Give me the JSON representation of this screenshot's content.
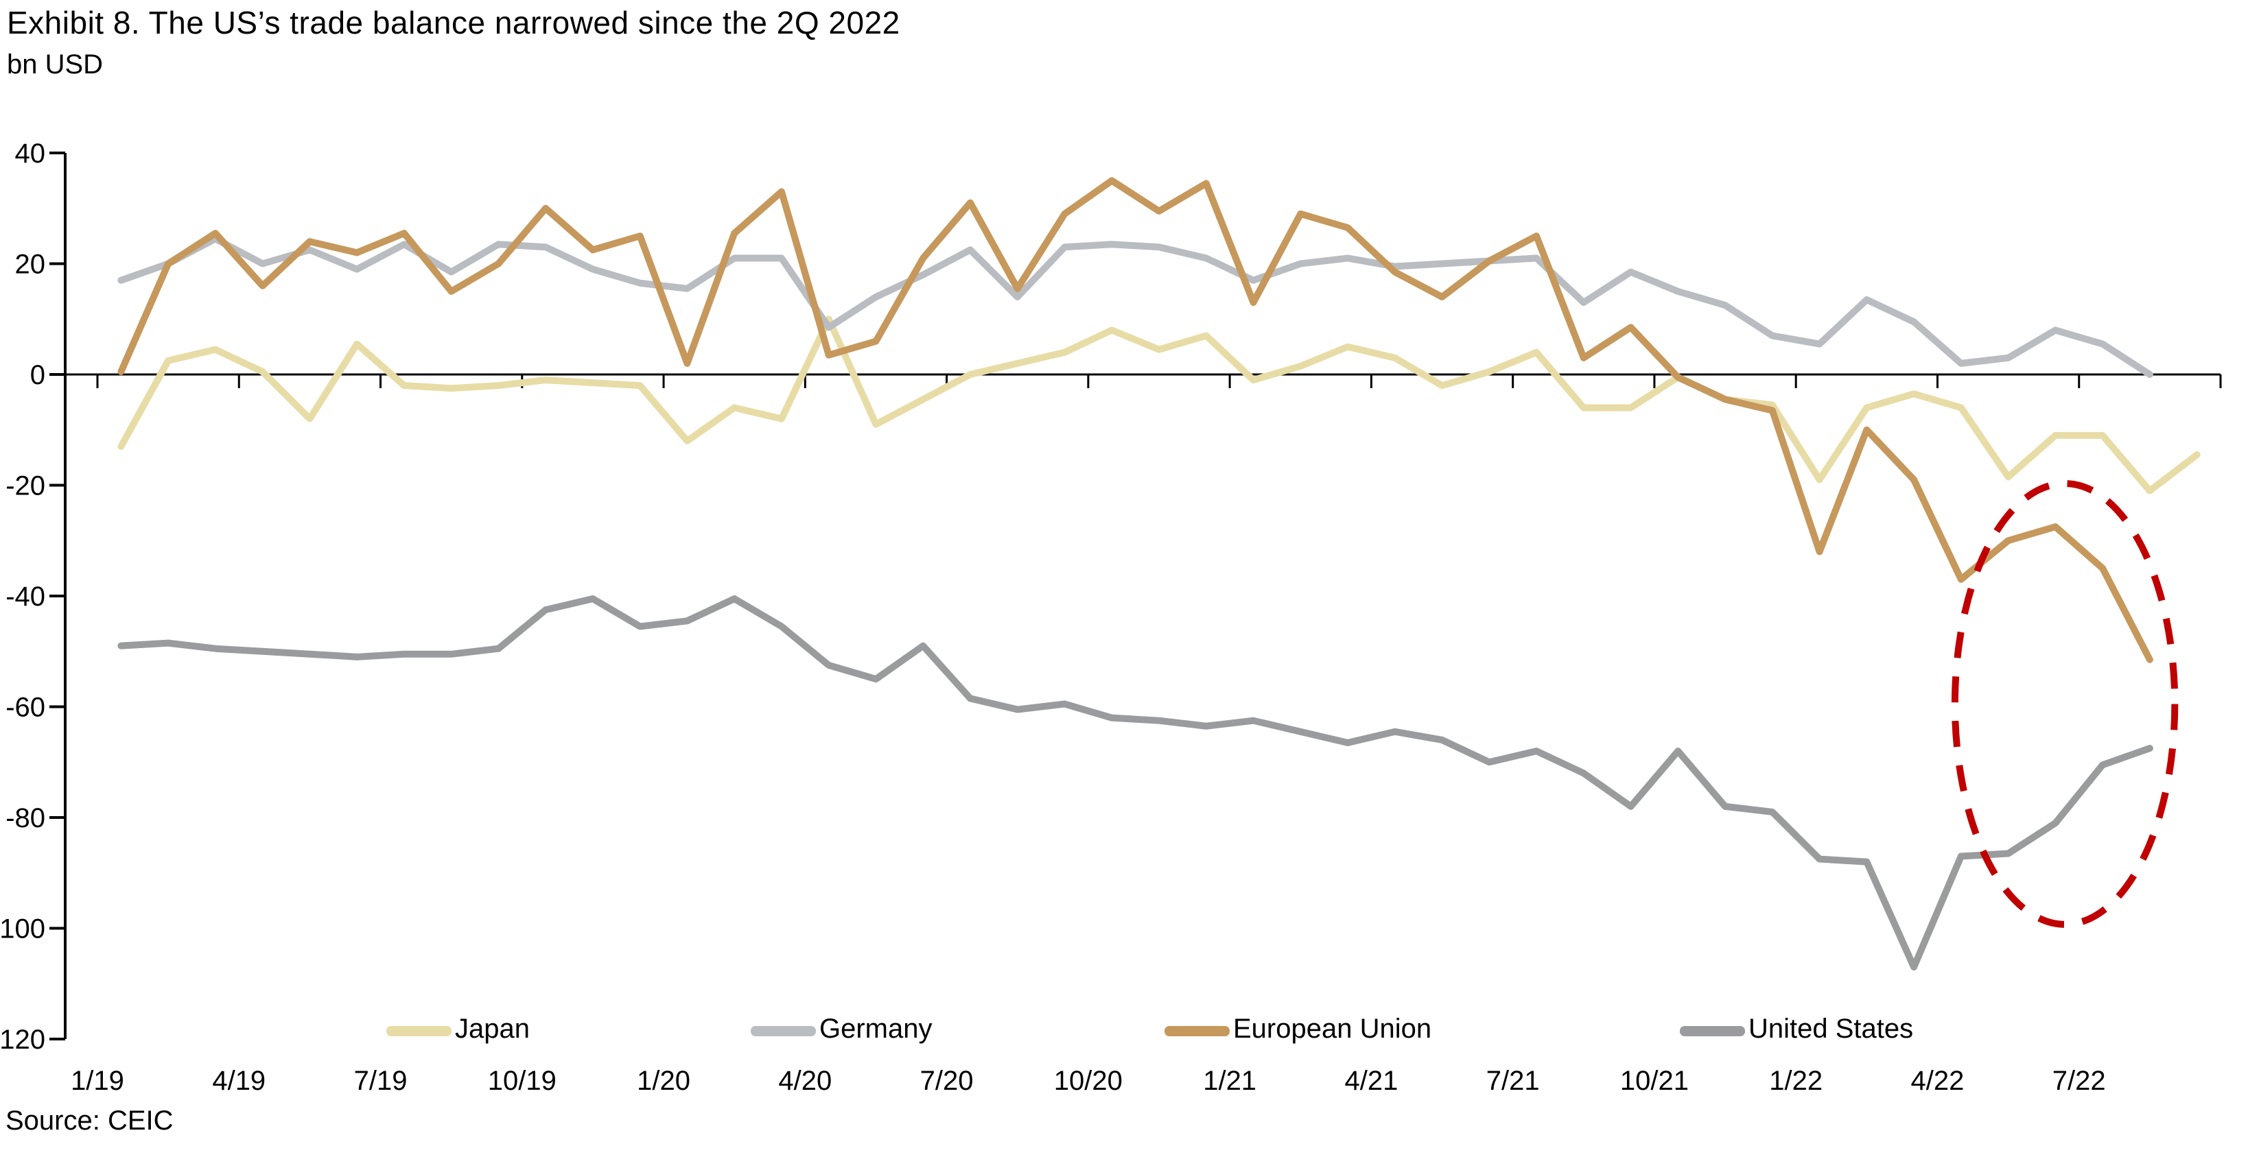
{
  "title": "Exhibit 8. The US’s trade balance narrowed since the 2Q 2022",
  "subtitle": "bn USD",
  "source": "Source: CEIC",
  "chart_data": {
    "type": "line",
    "title": "Exhibit 8. The US’s trade balance narrowed since the 2Q 2022",
    "ylabel": "bn USD",
    "xlabel": "",
    "ylim": [
      -120,
      40
    ],
    "ytick_step": 20,
    "ytick_labels": [
      "40",
      "20",
      "0",
      "-20",
      "-40",
      "-60",
      "-80",
      "-100",
      "-120"
    ],
    "x_tick_labels": [
      "1/19",
      "4/19",
      "7/19",
      "10/19",
      "1/20",
      "4/20",
      "7/20",
      "10/20",
      "1/21",
      "4/21",
      "7/21",
      "10/21",
      "1/22",
      "4/22",
      "7/22"
    ],
    "months": [
      "1/19",
      "2/19",
      "3/19",
      "4/19",
      "5/19",
      "6/19",
      "7/19",
      "8/19",
      "9/19",
      "10/19",
      "11/19",
      "12/19",
      "1/20",
      "2/20",
      "3/20",
      "4/20",
      "5/20",
      "6/20",
      "7/20",
      "8/20",
      "9/20",
      "10/20",
      "11/20",
      "12/20",
      "1/21",
      "2/21",
      "3/21",
      "4/21",
      "5/21",
      "6/21",
      "7/21",
      "8/21",
      "9/21",
      "10/21",
      "11/21",
      "12/21",
      "1/22",
      "2/22",
      "3/22",
      "4/22",
      "5/22",
      "6/22",
      "7/22",
      "8/22",
      "9/22"
    ],
    "grid": false,
    "legend_position": "bottom",
    "series": [
      {
        "name": "Japan",
        "color": "#e8dca6",
        "values": [
          -13,
          2.5,
          4.5,
          0.5,
          -8,
          5.5,
          -2,
          -2.5,
          -2,
          -1,
          -1.5,
          -2,
          -12,
          -6,
          -8,
          10,
          -9,
          -4.5,
          0,
          2,
          4,
          8,
          4.5,
          7,
          -1,
          1.5,
          5,
          3,
          -2,
          0.5,
          4,
          -6,
          -6,
          -0.5,
          -4.5,
          -5.5,
          -19,
          -6,
          -3.5,
          -6,
          -18.5,
          -11,
          -11,
          -21,
          -14.5
        ]
      },
      {
        "name": "Germany",
        "color": "#b9bcc0",
        "values": [
          17,
          20,
          24.5,
          20,
          22.5,
          19,
          23.5,
          18.5,
          23.5,
          23,
          19,
          16.5,
          15.5,
          21,
          21,
          8.5,
          14,
          18,
          22.5,
          14,
          23,
          23.5,
          23,
          21,
          17,
          20,
          21,
          19.5,
          20,
          20.5,
          21,
          13,
          18.5,
          15,
          12.5,
          7,
          5.5,
          13.5,
          9.5,
          2,
          3,
          8,
          5.5,
          0
        ]
      },
      {
        "name": "European Union",
        "color": "#c6985c",
        "values": [
          0.5,
          20,
          25.5,
          16,
          24,
          22,
          25.5,
          15,
          20,
          30,
          22.5,
          25,
          2,
          25.5,
          33,
          3.5,
          6,
          21,
          31,
          15.5,
          29,
          35,
          29.5,
          34.5,
          13,
          29,
          26.5,
          18.5,
          14,
          20.5,
          25,
          3,
          8.5,
          -0.5,
          -4.5,
          -6.5,
          -32,
          -10,
          -19,
          -37,
          -30,
          -27.5,
          -35,
          -51.5
        ]
      },
      {
        "name": "United States",
        "color": "#9a9b9d",
        "values": [
          -49,
          -48.5,
          -49.5,
          -50,
          -50.5,
          -51,
          -50.5,
          -50.5,
          -49.5,
          -42.5,
          -40.5,
          -45.5,
          -44.5,
          -40.5,
          -45.5,
          -52.5,
          -55,
          -49,
          -58.5,
          -60.5,
          -59.5,
          -62,
          -62.5,
          -63.5,
          -62.5,
          -64.5,
          -66.5,
          -64.5,
          -66,
          -70,
          -68,
          -72,
          -78,
          -68,
          -78,
          -79,
          -87.5,
          -88,
          -107,
          -87,
          -86.5,
          -81,
          -70.5,
          -67.5
        ]
      }
    ],
    "annotation_ellipse": {
      "color": "#c00000",
      "x_center_month_index": 41.7,
      "y_center_value": -59.5,
      "rx_months": 2.33,
      "ry_value": 39.8,
      "dashed": true
    }
  }
}
